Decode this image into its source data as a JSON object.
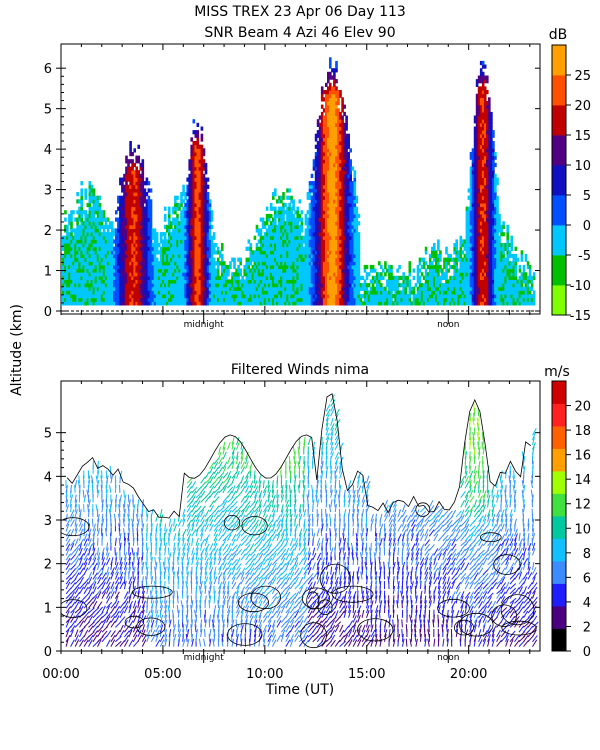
{
  "chart_data": [
    {
      "type": "heatmap",
      "title": "MISS TREX   23 Apr 06 Day 113",
      "subtitle": "SNR Beam 4 Azi  46 Elev 90",
      "ylabel": "Altitude (km)",
      "xlim": [
        0,
        23.5
      ],
      "ylim": [
        0,
        6.4
      ],
      "y_ticks": [
        "0",
        "1",
        "2",
        "3",
        "4",
        "5",
        "6"
      ],
      "x_annotations": [
        {
          "label": "midnight",
          "x": 7.0
        },
        {
          "label": "noon",
          "x": 19.0
        }
      ],
      "colorbar": {
        "unit": "dB",
        "range": [
          -15,
          30
        ],
        "tick_labels": [
          "25",
          "20",
          "15",
          "10",
          "5",
          "0",
          "-5",
          "-10",
          "-15"
        ],
        "colors": [
          "#80ff00",
          "#00c000",
          "#00c8ff",
          "#0050ff",
          "#1010c0",
          "#500080",
          "#c00000",
          "#ff5000",
          "#ffa000"
        ]
      },
      "features": [
        {
          "x_range": [
            2.5,
            4.5
          ],
          "alt_top_km": 3.8,
          "peak_dB": 18
        },
        {
          "x_range": [
            6.0,
            7.3
          ],
          "alt_top_km": 4.4,
          "peak_dB": 20
        },
        {
          "x_range": [
            12.2,
            14.3
          ],
          "alt_top_km": 5.8,
          "peak_dB": 25
        },
        {
          "x_range": [
            20.0,
            21.3
          ],
          "alt_top_km": 6.0,
          "peak_dB": 18
        }
      ]
    },
    {
      "type": "heatmap",
      "title": "Filtered Winds nima",
      "xlabel": "Time (UT)",
      "xlim": [
        0,
        23.5
      ],
      "ylim": [
        0,
        6.0
      ],
      "y_ticks": [
        "0",
        "1",
        "2",
        "3",
        "4",
        "5"
      ],
      "x_ticks": [
        "00:00",
        "05:00",
        "10:00",
        "15:00",
        "20:00"
      ],
      "x_annotations": [
        {
          "label": "midnight",
          "x": 7.0
        },
        {
          "label": "noon",
          "x": 19.0
        }
      ],
      "colorbar": {
        "unit": "m/s",
        "range": [
          0,
          22
        ],
        "tick_labels": [
          "20",
          "18",
          "16",
          "14",
          "12",
          "10",
          "8",
          "6",
          "4",
          "2",
          "0"
        ],
        "colors": [
          "#000000",
          "#4b0082",
          "#1e1eff",
          "#3c8cff",
          "#10c0ff",
          "#00c8a0",
          "#40e040",
          "#a0ff00",
          "#ffa000",
          "#ff6000",
          "#ff2020",
          "#d00000"
        ]
      }
    }
  ]
}
